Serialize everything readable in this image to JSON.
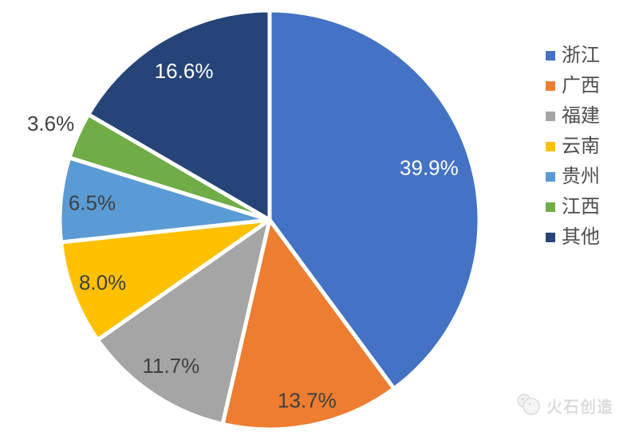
{
  "chart_data": {
    "type": "pie",
    "title": "",
    "legend_position": "right",
    "start_angle_deg": 0,
    "direction": "clockwise",
    "background": "#FFFFFF",
    "separator_color": "#FFFFFF",
    "slices": [
      {
        "label": "浙江",
        "value": 39.9,
        "display": "39.9%",
        "color": "#4472C4",
        "label_color": "#FFFFFF",
        "label_placement": "inside"
      },
      {
        "label": "广西",
        "value": 13.7,
        "display": "13.7%",
        "color": "#ED7D31",
        "label_color": "#404040",
        "label_placement": "inside"
      },
      {
        "label": "福建",
        "value": 11.7,
        "display": "11.7%",
        "color": "#A5A5A5",
        "label_color": "#404040",
        "label_placement": "inside"
      },
      {
        "label": "云南",
        "value": 8.0,
        "display": "8.0%",
        "color": "#FFC000",
        "label_color": "#404040",
        "label_placement": "inside"
      },
      {
        "label": "贵州",
        "value": 6.5,
        "display": "6.5%",
        "color": "#5B9BD5",
        "label_color": "#404040",
        "label_placement": "inside"
      },
      {
        "label": "江西",
        "value": 3.6,
        "display": "3.6%",
        "color": "#70AD47",
        "label_color": "#404040",
        "label_placement": "outside"
      },
      {
        "label": "其他",
        "value": 16.6,
        "display": "16.6%",
        "color": "#264478",
        "label_color": "#FFFFFF",
        "label_placement": "inside"
      }
    ]
  },
  "watermark": {
    "text": "火石创造"
  }
}
